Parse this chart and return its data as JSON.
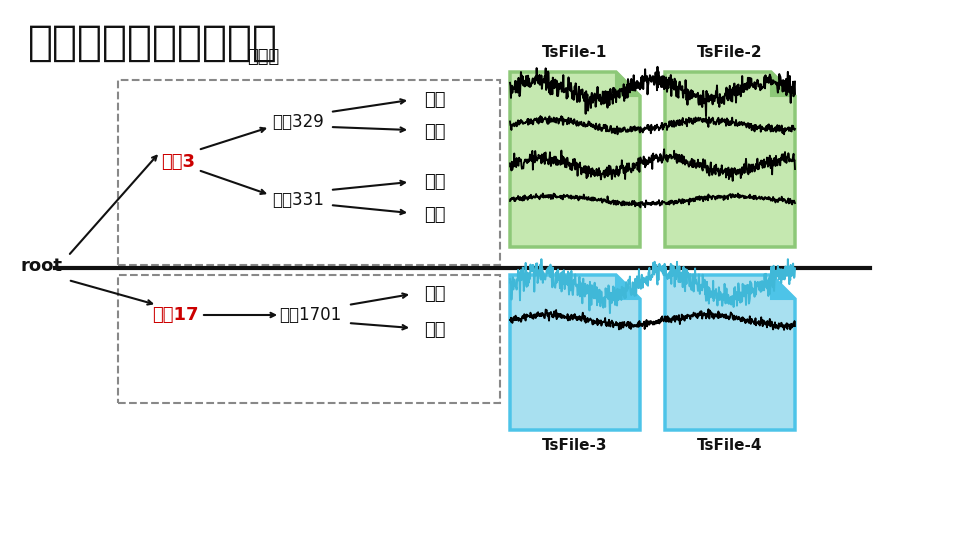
{
  "title": "数据模型与多文件管理",
  "title_fontsize": 30,
  "background_color": "#ffffff",
  "storage_group_label": "存储组",
  "root_label": "root",
  "line3_label": "线路3",
  "line17_label": "线路17",
  "train329_label": "列车329",
  "train331_label": "列车331",
  "train1701_label": "列车1701",
  "temp_label": "温度",
  "speed_label": "速度",
  "tsfile_labels": [
    "TsFile-1",
    "TsFile-2",
    "TsFile-3",
    "TsFile-4"
  ],
  "green_border": "#8dc878",
  "green_fill": "#c5e8b0",
  "blue_border": "#4dc4e8",
  "blue_fill": "#a8e0f0",
  "red_color": "#cc0000",
  "black_color": "#111111",
  "gray_dash": "#888888",
  "separator_color": "#111111"
}
